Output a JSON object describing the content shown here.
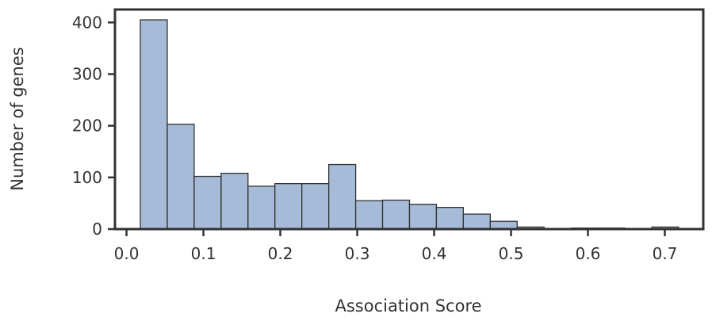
{
  "chart_data": {
    "type": "bar",
    "subtype": "histogram",
    "xlabel": "Association Score",
    "ylabel": "Number of genes",
    "xlim": [
      -0.015,
      0.75
    ],
    "ylim": [
      0,
      425
    ],
    "xticks": [
      "0.0",
      "0.1",
      "0.2",
      "0.3",
      "0.4",
      "0.5",
      "0.6",
      "0.7"
    ],
    "yticks": [
      "0",
      "100",
      "200",
      "300",
      "400"
    ],
    "grid": false,
    "bins": [
      {
        "x0": 0.018,
        "x1": 0.053,
        "value": 405
      },
      {
        "x0": 0.053,
        "x1": 0.088,
        "value": 203
      },
      {
        "x0": 0.088,
        "x1": 0.123,
        "value": 102
      },
      {
        "x0": 0.123,
        "x1": 0.158,
        "value": 108
      },
      {
        "x0": 0.158,
        "x1": 0.193,
        "value": 83
      },
      {
        "x0": 0.193,
        "x1": 0.228,
        "value": 88
      },
      {
        "x0": 0.228,
        "x1": 0.263,
        "value": 88
      },
      {
        "x0": 0.263,
        "x1": 0.298,
        "value": 125
      },
      {
        "x0": 0.298,
        "x1": 0.333,
        "value": 55
      },
      {
        "x0": 0.333,
        "x1": 0.368,
        "value": 56
      },
      {
        "x0": 0.368,
        "x1": 0.403,
        "value": 48
      },
      {
        "x0": 0.403,
        "x1": 0.438,
        "value": 42
      },
      {
        "x0": 0.438,
        "x1": 0.473,
        "value": 29
      },
      {
        "x0": 0.473,
        "x1": 0.508,
        "value": 15
      },
      {
        "x0": 0.508,
        "x1": 0.543,
        "value": 4
      },
      {
        "x0": 0.543,
        "x1": 0.578,
        "value": 0
      },
      {
        "x0": 0.578,
        "x1": 0.613,
        "value": 2
      },
      {
        "x0": 0.613,
        "x1": 0.648,
        "value": 2
      },
      {
        "x0": 0.648,
        "x1": 0.683,
        "value": 1
      },
      {
        "x0": 0.683,
        "x1": 0.718,
        "value": 4
      }
    ],
    "colors": {
      "bar_fill": "#a5bbd7",
      "bar_edge": "#333333",
      "axis": "#333333"
    }
  }
}
